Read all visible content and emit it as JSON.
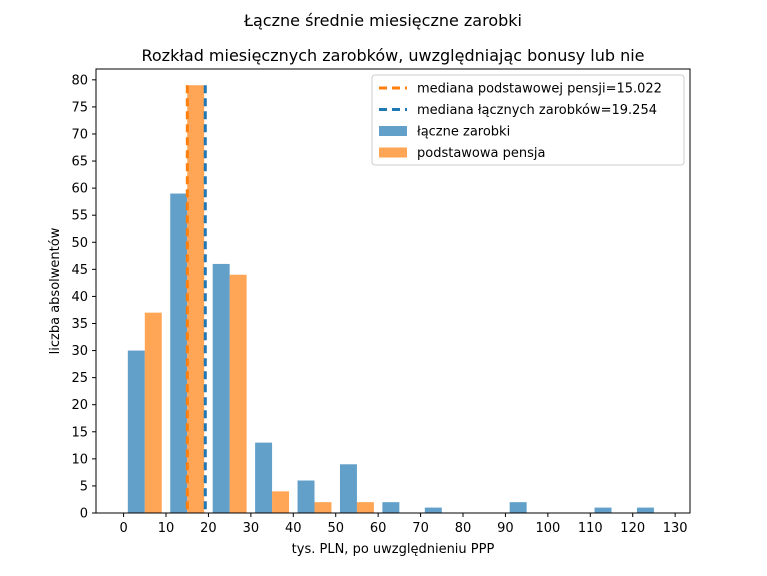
{
  "chart_data": {
    "type": "bar",
    "suptitle": "Łączne średnie miesięczne zarobki",
    "title": "Rozkład miesięcznych zarobków, uwzględniając bonusy lub nie",
    "xlabel": "tys. PLN, po uwzględnieniu PPP",
    "ylabel": "liczba absolwentów",
    "xlim": [
      -6.5,
      133.5
    ],
    "ylim": [
      0,
      82
    ],
    "xticks": [
      0,
      10,
      20,
      30,
      40,
      50,
      60,
      70,
      80,
      90,
      100,
      110,
      120,
      130
    ],
    "yticks": [
      0,
      5,
      10,
      15,
      20,
      25,
      30,
      35,
      40,
      45,
      50,
      55,
      60,
      65,
      70,
      75,
      80
    ],
    "grid": false,
    "legend_position": "top-right",
    "series": [
      {
        "name": "łączne zarobki",
        "color": "#1f77b4",
        "opacity": 0.7,
        "bins": [
          [
            1,
            5,
            30
          ],
          [
            11,
            15,
            59
          ],
          [
            21,
            25,
            46
          ],
          [
            31,
            35,
            13
          ],
          [
            41,
            45,
            6
          ],
          [
            51,
            55,
            9
          ],
          [
            61,
            65,
            2
          ],
          [
            71,
            75,
            1
          ],
          [
            91,
            95,
            2
          ],
          [
            111,
            115,
            1
          ],
          [
            121,
            125,
            1
          ]
        ]
      },
      {
        "name": "podstawowa pensja",
        "color": "#ff7f0e",
        "opacity": 0.7,
        "bins": [
          [
            5,
            9,
            37
          ],
          [
            15,
            19,
            79
          ],
          [
            25,
            29,
            44
          ],
          [
            35,
            39,
            4
          ],
          [
            45,
            49,
            2
          ],
          [
            55,
            59,
            2
          ]
        ]
      }
    ],
    "median_lines": [
      {
        "name": "mediana podstawowej pensji=15.022",
        "x": 15.022,
        "color": "#ff7f0e"
      },
      {
        "name": "mediana łącznych zarobków=19.254",
        "x": 19.254,
        "color": "#1f77b4"
      }
    ]
  }
}
